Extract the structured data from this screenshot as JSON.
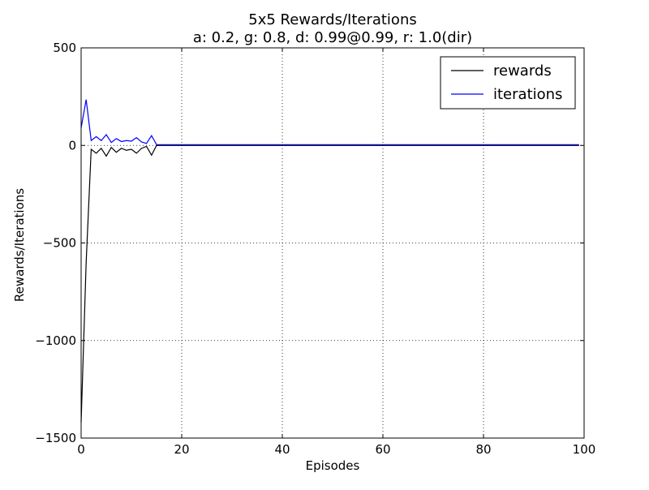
{
  "chart_data": {
    "type": "line",
    "title": "5x5 Rewards/Iterations",
    "subtitle": "a: 0.2, g: 0.8, d: 0.99@0.99, r: 1.0(dir)",
    "xlabel": "Episodes",
    "ylabel": "Rewards/Iterations",
    "xlim": [
      0,
      100
    ],
    "ylim": [
      -1500,
      500
    ],
    "xticks": [
      0,
      20,
      40,
      60,
      80,
      100
    ],
    "xtick_labels": [
      "0",
      "20",
      "40",
      "60",
      "80",
      "100"
    ],
    "yticks": [
      -1500,
      -1000,
      -500,
      0,
      500
    ],
    "ytick_labels": [
      "−1500",
      "−1000",
      "−500",
      "0",
      "500"
    ],
    "grid": true,
    "legend_position": "top-right",
    "series": [
      {
        "name": "rewards",
        "color": "#000000",
        "x": [
          0,
          1,
          2,
          3,
          4,
          5,
          6,
          7,
          8,
          9,
          10,
          11,
          12,
          13,
          14,
          15,
          16,
          17,
          18,
          19,
          20,
          21,
          22,
          23,
          24,
          25,
          26,
          27,
          28,
          29,
          30,
          31,
          32,
          33,
          34,
          35,
          36,
          37,
          38,
          39,
          40,
          41,
          42,
          43,
          44,
          45,
          46,
          47,
          48,
          49,
          50,
          51,
          52,
          53,
          54,
          55,
          56,
          57,
          58,
          59,
          60,
          61,
          62,
          63,
          64,
          65,
          66,
          67,
          68,
          69,
          70,
          71,
          72,
          73,
          74,
          75,
          76,
          77,
          78,
          79,
          80,
          81,
          82,
          83,
          84,
          85,
          86,
          87,
          88,
          89,
          90,
          91,
          92,
          93,
          94,
          95,
          96,
          97,
          98,
          99
        ],
        "values": [
          -1420,
          -600,
          -20,
          -40,
          -15,
          -55,
          -10,
          -35,
          -15,
          -25,
          -20,
          -40,
          -15,
          -5,
          -50,
          0,
          0,
          0,
          0,
          0,
          0,
          0,
          0,
          0,
          0,
          0,
          0,
          0,
          0,
          0,
          0,
          0,
          0,
          0,
          0,
          0,
          0,
          0,
          0,
          0,
          0,
          0,
          0,
          0,
          0,
          0,
          0,
          0,
          0,
          0,
          0,
          0,
          0,
          0,
          0,
          0,
          0,
          0,
          0,
          0,
          0,
          0,
          0,
          0,
          0,
          0,
          0,
          0,
          0,
          0,
          0,
          0,
          0,
          0,
          0,
          0,
          0,
          0,
          0,
          0,
          0,
          0,
          0,
          0,
          0,
          0,
          0,
          0,
          0,
          0,
          0,
          0,
          0,
          0,
          0,
          0,
          0,
          0,
          0,
          0
        ]
      },
      {
        "name": "iterations",
        "color": "#0000ff",
        "x": [
          0,
          1,
          2,
          3,
          4,
          5,
          6,
          7,
          8,
          9,
          10,
          11,
          12,
          13,
          14,
          15,
          16,
          17,
          18,
          19,
          20,
          21,
          22,
          23,
          24,
          25,
          26,
          27,
          28,
          29,
          30,
          31,
          32,
          33,
          34,
          35,
          36,
          37,
          38,
          39,
          40,
          41,
          42,
          43,
          44,
          45,
          46,
          47,
          48,
          49,
          50,
          51,
          52,
          53,
          54,
          55,
          56,
          57,
          58,
          59,
          60,
          61,
          62,
          63,
          64,
          65,
          66,
          67,
          68,
          69,
          70,
          71,
          72,
          73,
          74,
          75,
          76,
          77,
          78,
          79,
          80,
          81,
          82,
          83,
          84,
          85,
          86,
          87,
          88,
          89,
          90,
          91,
          92,
          93,
          94,
          95,
          96,
          97,
          98,
          99
        ],
        "values": [
          90,
          235,
          25,
          45,
          25,
          55,
          15,
          35,
          20,
          25,
          22,
          40,
          18,
          10,
          50,
          4,
          4,
          4,
          4,
          4,
          4,
          4,
          4,
          4,
          4,
          4,
          4,
          4,
          4,
          4,
          4,
          4,
          4,
          4,
          4,
          4,
          4,
          4,
          4,
          4,
          4,
          4,
          4,
          4,
          4,
          4,
          4,
          4,
          4,
          4,
          4,
          4,
          4,
          4,
          4,
          4,
          4,
          4,
          4,
          4,
          4,
          4,
          4,
          4,
          4,
          4,
          4,
          4,
          4,
          4,
          4,
          4,
          4,
          4,
          4,
          4,
          4,
          4,
          4,
          4,
          4,
          4,
          4,
          4,
          4,
          4,
          4,
          4,
          4,
          4,
          4,
          4,
          4,
          4,
          4,
          4,
          4,
          4,
          4,
          4
        ]
      }
    ]
  }
}
